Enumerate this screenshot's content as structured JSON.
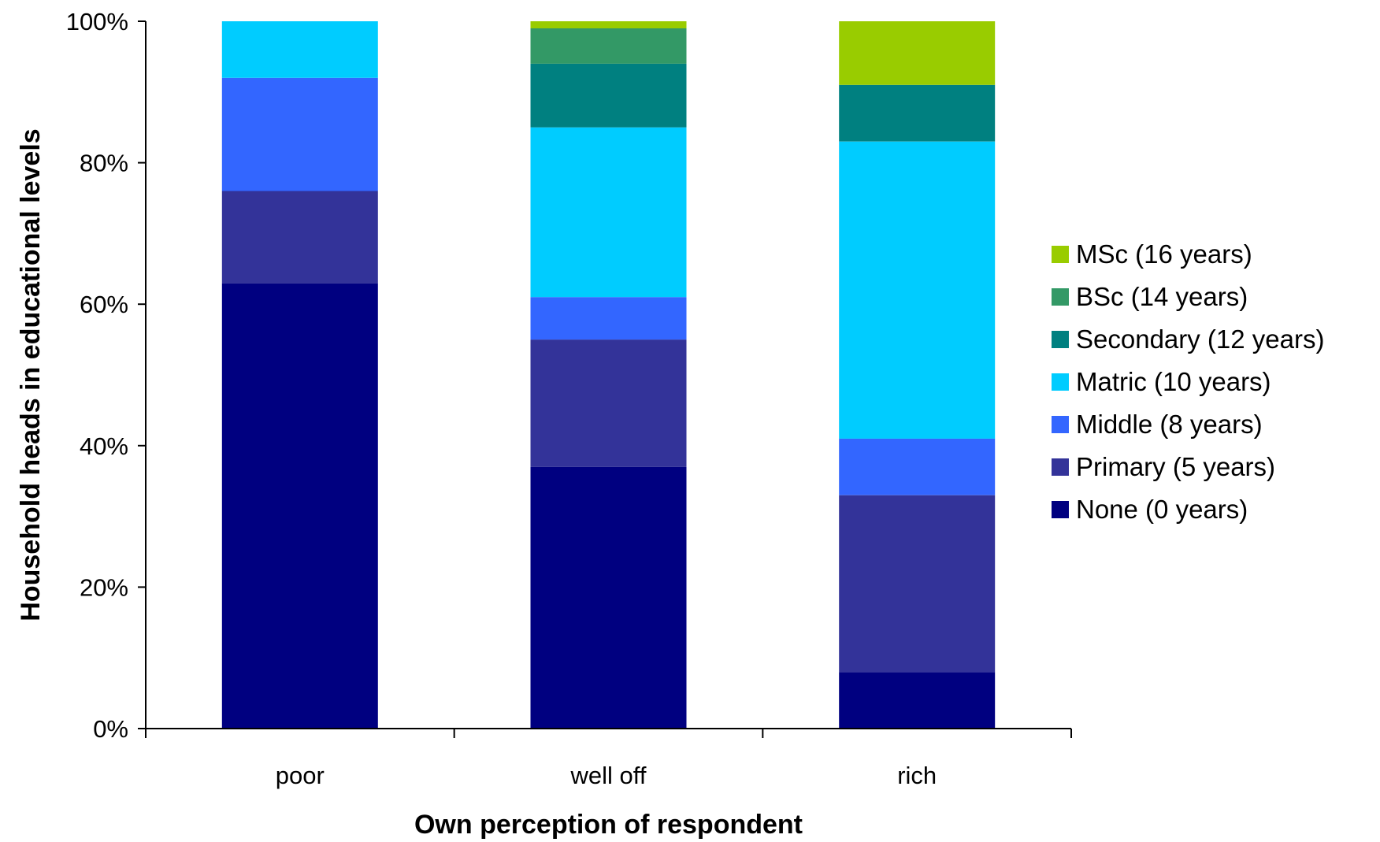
{
  "chart_data": {
    "type": "bar",
    "stacked": true,
    "title": "",
    "xlabel": "Own perception of respondent",
    "ylabel": "Household heads in educational levels",
    "categories": [
      "poor",
      "well off",
      "rich"
    ],
    "ylim": [
      0,
      100
    ],
    "yticks": [
      "0%",
      "20%",
      "40%",
      "60%",
      "80%",
      "100%"
    ],
    "grid": false,
    "legend_position": "right",
    "series": [
      {
        "name": "None (0 years)",
        "color": "#000080",
        "values": [
          63,
          37,
          8
        ]
      },
      {
        "name": "Primary (5 years)",
        "color": "#333399",
        "values": [
          13,
          18,
          25
        ]
      },
      {
        "name": "Middle (8 years)",
        "color": "#3366FF",
        "values": [
          16,
          6,
          8
        ]
      },
      {
        "name": "Matric (10 years)",
        "color": "#00CCFF",
        "values": [
          8,
          24,
          42
        ]
      },
      {
        "name": "Secondary (12 years)",
        "color": "#008080",
        "values": [
          0,
          9,
          8
        ]
      },
      {
        "name": "BSc (14 years)",
        "color": "#339966",
        "values": [
          0,
          5,
          0
        ]
      },
      {
        "name": "MSc (16 years)",
        "color": "#99CC00",
        "values": [
          0,
          1,
          9
        ]
      }
    ]
  }
}
